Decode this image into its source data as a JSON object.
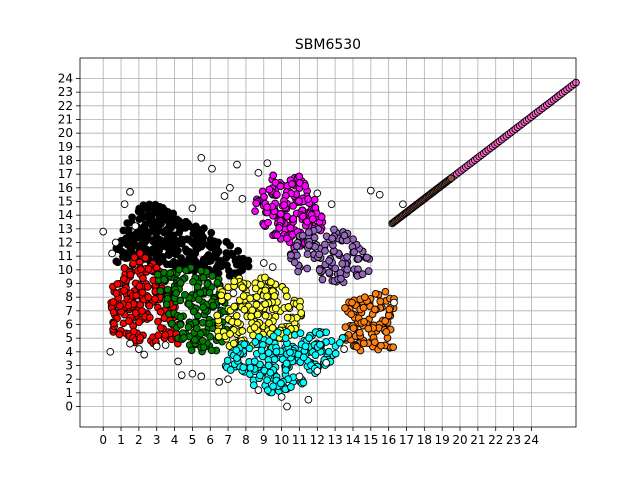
{
  "chart_data": {
    "type": "scatter",
    "title": "SBM6530",
    "xlabel": "",
    "ylabel": "",
    "xlim": [
      -1.3,
      26.5
    ],
    "ylim": [
      -1.5,
      25.5
    ],
    "x_ticks": [
      0,
      1,
      2,
      3,
      4,
      5,
      6,
      7,
      8,
      9,
      10,
      11,
      12,
      13,
      14,
      15,
      16,
      17,
      18,
      19,
      20,
      21,
      22,
      23,
      24
    ],
    "y_ticks": [
      0,
      1,
      2,
      3,
      4,
      5,
      6,
      7,
      8,
      9,
      10,
      11,
      12,
      13,
      14,
      15,
      16,
      17,
      18,
      19,
      20,
      21,
      22,
      23,
      24
    ],
    "grid": true,
    "legend": "none",
    "clusters": [
      {
        "color": "#000000",
        "polygon": [
          [
            0.5,
            11
          ],
          [
            1,
            12.5
          ],
          [
            1.5,
            14
          ],
          [
            2.5,
            15
          ],
          [
            3.5,
            14.5
          ],
          [
            5,
            13.5
          ],
          [
            6,
            13
          ],
          [
            7,
            12
          ],
          [
            8,
            11
          ],
          [
            8.5,
            10
          ],
          [
            7,
            9.5
          ],
          [
            5.5,
            9.8
          ],
          [
            4,
            10
          ],
          [
            3,
            10.5
          ],
          [
            1.5,
            10.5
          ],
          [
            0.6,
            10.5
          ]
        ],
        "n": 320
      },
      {
        "color": "#ff00ff",
        "polygon": [
          [
            8.8,
            16
          ],
          [
            9.5,
            17
          ],
          [
            11,
            17
          ],
          [
            12,
            15
          ],
          [
            12.5,
            13.5
          ],
          [
            11.5,
            11.5
          ],
          [
            10.5,
            11.5
          ],
          [
            9.5,
            12.5
          ],
          [
            8.5,
            14
          ],
          [
            8.5,
            15
          ]
        ],
        "n": 170
      },
      {
        "color": "#9467bd",
        "polygon": [
          [
            10.5,
            12.5
          ],
          [
            11.5,
            13
          ],
          [
            13,
            13
          ],
          [
            14,
            12.5
          ],
          [
            15,
            11
          ],
          [
            15,
            10
          ],
          [
            14,
            9
          ],
          [
            12.5,
            9
          ],
          [
            11,
            9.5
          ],
          [
            10.5,
            10.5
          ]
        ],
        "n": 110
      },
      {
        "color": "#ff7f0e",
        "polygon": [
          [
            13.5,
            7.5
          ],
          [
            14.5,
            8
          ],
          [
            16,
            8.5
          ],
          [
            16.5,
            7.5
          ],
          [
            16.5,
            4.5
          ],
          [
            16,
            4
          ],
          [
            14.5,
            4
          ],
          [
            13.5,
            4.5
          ],
          [
            13.5,
            6
          ]
        ],
        "n": 100
      },
      {
        "color": "#ff0000",
        "polygon": [
          [
            0.3,
            8.5
          ],
          [
            1,
            10.5
          ],
          [
            2,
            11.3
          ],
          [
            3,
            10.5
          ],
          [
            3.5,
            9.5
          ],
          [
            4,
            7.5
          ],
          [
            4.5,
            6
          ],
          [
            4.5,
            4.5
          ],
          [
            3.5,
            4.5
          ],
          [
            2,
            4.5
          ],
          [
            0.5,
            5.5
          ],
          [
            0.3,
            7
          ]
        ],
        "n": 200
      },
      {
        "color": "#008000",
        "polygon": [
          [
            3,
            10
          ],
          [
            5,
            10.3
          ],
          [
            6.5,
            9.5
          ],
          [
            7,
            8
          ],
          [
            7,
            6
          ],
          [
            6.5,
            4
          ],
          [
            5,
            4
          ],
          [
            4,
            5
          ],
          [
            3.5,
            7
          ],
          [
            3,
            9
          ]
        ],
        "n": 170
      },
      {
        "color": "#ffff33",
        "polygon": [
          [
            6.5,
            8.5
          ],
          [
            7.5,
            9.5
          ],
          [
            9,
            9.5
          ],
          [
            10.5,
            8.5
          ],
          [
            11.5,
            7
          ],
          [
            11,
            5.5
          ],
          [
            9.5,
            4.5
          ],
          [
            8,
            4
          ],
          [
            6.5,
            4.5
          ],
          [
            6.3,
            6.5
          ]
        ],
        "n": 190
      },
      {
        "color": "#00ffff",
        "polygon": [
          [
            7,
            4
          ],
          [
            8,
            5
          ],
          [
            9.5,
            5.5
          ],
          [
            11,
            5.5
          ],
          [
            12.5,
            5.5
          ],
          [
            13.5,
            5
          ],
          [
            13,
            3.5
          ],
          [
            11.5,
            2
          ],
          [
            10.5,
            1
          ],
          [
            9,
            1
          ],
          [
            7.5,
            2
          ],
          [
            6.8,
            3
          ]
        ],
        "n": 200
      },
      {
        "color": "#ff66cc",
        "diagonal": [
          17.8,
          26.5
        ],
        "n": 70
      },
      {
        "color": "#8c564b",
        "diagonal": [
          16.2,
          19.5
        ],
        "n": 45
      }
    ],
    "outliers": [
      [
        0,
        12.8
      ],
      [
        0.5,
        11.2
      ],
      [
        1.2,
        14.8
      ],
      [
        1.5,
        15.7
      ],
      [
        5,
        14.5
      ],
      [
        5.5,
        18.2
      ],
      [
        6.1,
        17.4
      ],
      [
        6.8,
        15.4
      ],
      [
        7.1,
        16
      ],
      [
        7.5,
        17.7
      ],
      [
        7.8,
        15.2
      ],
      [
        8.7,
        17.1
      ],
      [
        9.2,
        17.8
      ],
      [
        12,
        15.6
      ],
      [
        12.8,
        14.8
      ],
      [
        15,
        15.8
      ],
      [
        15.5,
        15.5
      ],
      [
        16.3,
        7.6
      ],
      [
        16.8,
        14.8
      ],
      [
        0.4,
        4
      ],
      [
        1.5,
        4.6
      ],
      [
        2,
        4.2
      ],
      [
        2.3,
        3.8
      ],
      [
        3,
        4.4
      ],
      [
        3.5,
        4.5
      ],
      [
        4.2,
        3.3
      ],
      [
        4.4,
        2.3
      ],
      [
        5,
        2.4
      ],
      [
        5.5,
        2.2
      ],
      [
        6.5,
        1.8
      ],
      [
        7,
        2
      ],
      [
        8.7,
        1.2
      ],
      [
        10,
        0.7
      ],
      [
        10.3,
        0
      ],
      [
        11.5,
        0.5
      ],
      [
        12,
        2.6
      ],
      [
        12.5,
        3.2
      ],
      [
        13.5,
        4.2
      ],
      [
        11,
        2.2
      ],
      [
        9,
        10.5
      ],
      [
        9.5,
        10.2
      ],
      [
        1.8,
        13.2
      ],
      [
        0.7,
        12
      ],
      [
        7.3,
        8.3
      ]
    ]
  }
}
